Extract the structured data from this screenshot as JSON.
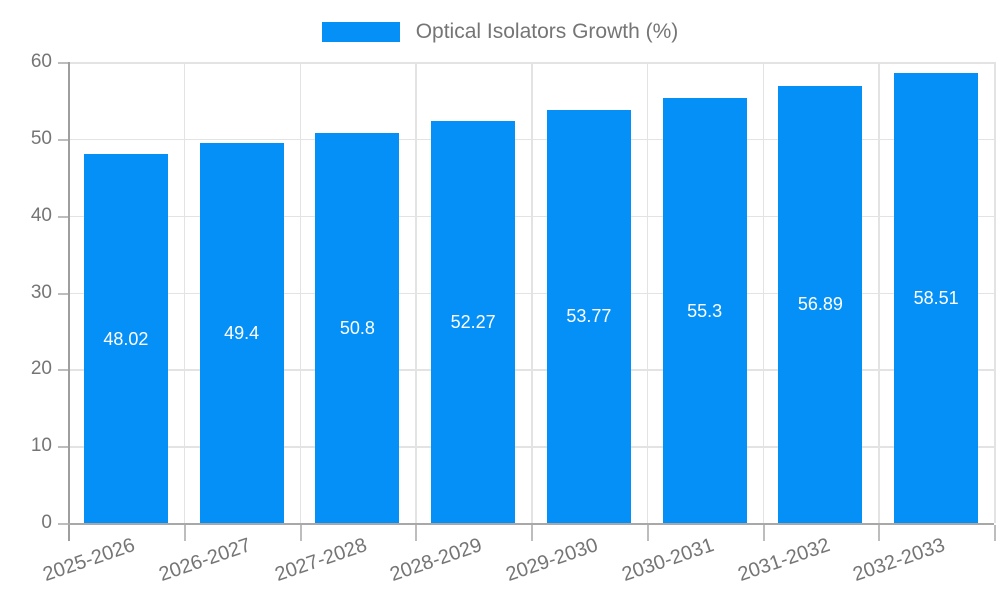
{
  "legend": {
    "label": "Optical Isolators Growth (%)",
    "swatch_color": "#0590f8"
  },
  "chart_data": {
    "type": "bar",
    "title": "Optical Isolators Growth (%)",
    "categories": [
      "2025-2026",
      "2026-2027",
      "2027-2028",
      "2028-2029",
      "2029-2030",
      "2030-2031",
      "2031-2032",
      "2032-2033"
    ],
    "values": [
      48.02,
      49.4,
      50.8,
      52.27,
      53.77,
      55.3,
      56.89,
      58.51
    ],
    "value_labels": [
      "48.02",
      "49.4",
      "50.8",
      "52.27",
      "53.77",
      "55.3",
      "56.89",
      "58.51"
    ],
    "yticks": [
      0,
      10,
      20,
      30,
      40,
      50,
      60
    ],
    "ytick_labels": [
      "0",
      "10",
      "20",
      "30",
      "40",
      "50",
      "60"
    ],
    "ylim": [
      0,
      60
    ],
    "xlabel": "",
    "ylabel": "",
    "grid": true,
    "legend_position": "top",
    "x_label_rotation_deg": -19,
    "bar_color": "#0590f8",
    "value_label_color": "#ffffff",
    "axis_text_color": "#757575",
    "grid_color": "#e3e3e3",
    "axis_line_color": "#9e9e9e"
  }
}
